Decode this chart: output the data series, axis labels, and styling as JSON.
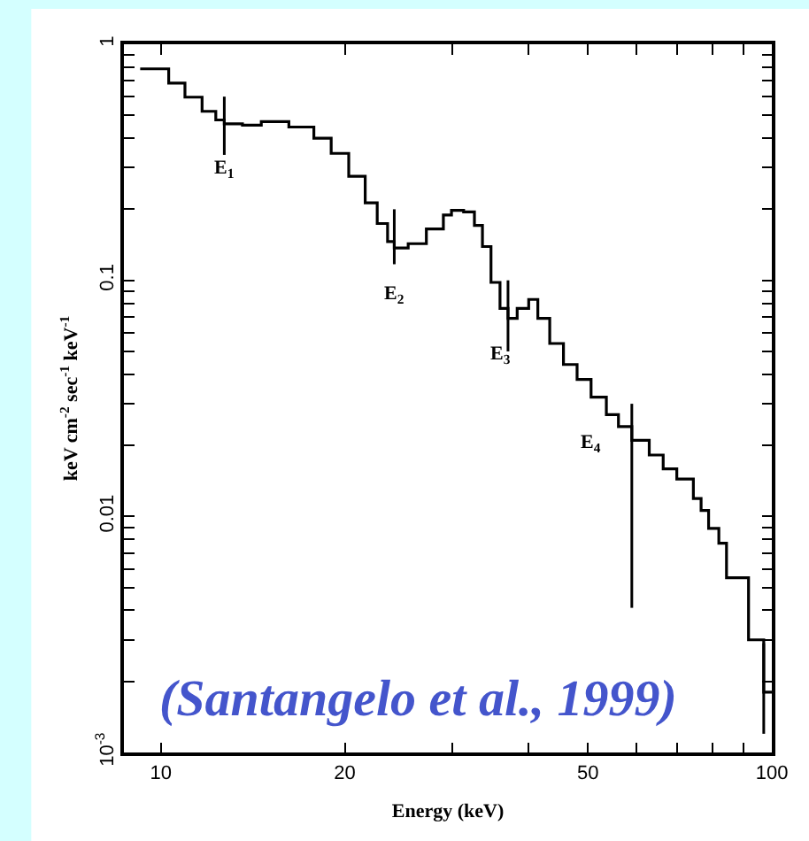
{
  "chart_data": {
    "type": "step",
    "xlabel": "Energy (keV)",
    "ylabel": "keV cm$^{-2}$ sec$^{-1}$ keV$^{-1}$",
    "log": "xy",
    "xlim": [
      8.7,
      100
    ],
    "ylim": [
      0.001,
      1
    ],
    "xticks": [
      10,
      20,
      {
        "value": 30,
        "label": null
      },
      {
        "value": 40,
        "label": null
      },
      50,
      {
        "value": 60,
        "label": null
      },
      {
        "value": 70,
        "label": null
      },
      {
        "value": 80,
        "label": null
      },
      {
        "value": 90,
        "label": null
      },
      100
    ],
    "yticks": [
      {
        "value": 0.001,
        "label": "10$^{-3}$"
      },
      {
        "value": 0.002,
        "label": null
      },
      {
        "value": 0.003,
        "label": null
      },
      {
        "value": 0.004,
        "label": null
      },
      {
        "value": 0.005,
        "label": null
      },
      {
        "value": 0.006,
        "label": null
      },
      {
        "value": 0.007,
        "label": null
      },
      {
        "value": 0.008,
        "label": null
      },
      {
        "value": 0.009,
        "label": null
      },
      0.01,
      {
        "value": 0.02,
        "label": null
      },
      {
        "value": 0.03,
        "label": null
      },
      {
        "value": 0.04,
        "label": null
      },
      {
        "value": 0.05,
        "label": null
      },
      {
        "value": 0.06,
        "label": null
      },
      {
        "value": 0.07,
        "label": null
      },
      {
        "value": 0.08,
        "label": null
      },
      {
        "value": 0.09,
        "label": null
      },
      0.1,
      {
        "value": 0.2,
        "label": null
      },
      {
        "value": 0.3,
        "label": null
      },
      {
        "value": 0.4,
        "label": null
      },
      {
        "value": 0.5,
        "label": null
      },
      {
        "value": 0.6,
        "label": null
      },
      {
        "value": 0.7,
        "label": null
      },
      {
        "value": 0.8,
        "label": null
      },
      {
        "value": 0.9,
        "label": null
      },
      1
    ],
    "series": [
      {
        "color": "#000000",
        "x": [
          9.25,
          10.3,
          10.95,
          11.68,
          12.3,
          12.7,
          13.6,
          14.6,
          16.2,
          17.8,
          19.0,
          20.3,
          21.6,
          22.6,
          23.5,
          24.1,
          25.4,
          27.2,
          29.0,
          29.9,
          31.3,
          32.6,
          33.6,
          34.7,
          35.9,
          37.0,
          38.3,
          40.0,
          41.4,
          43.3,
          45.6,
          48.0,
          50.6,
          53.6,
          56.1,
          59.0,
          63.0,
          66.4,
          69.9,
          74.4,
          76.6,
          78.8,
          81.9,
          84.3,
          90.5,
          91.6,
          97.0,
          100
        ],
        "values": [
          0.787,
          0.685,
          0.597,
          0.52,
          0.478,
          0.46,
          0.454,
          0.47,
          0.446,
          0.4,
          0.345,
          0.276,
          0.213,
          0.174,
          0.146,
          0.137,
          0.143,
          0.165,
          0.189,
          0.198,
          0.195,
          0.171,
          0.139,
          0.098,
          0.076,
          0.069,
          0.076,
          0.083,
          0.069,
          0.054,
          0.044,
          0.038,
          0.032,
          0.027,
          0.024,
          0.021,
          0.0182,
          0.0159,
          0.0144,
          0.0119,
          0.0106,
          0.0089,
          0.0077,
          0.0055,
          0.0055,
          0.003,
          0.0018,
          0.0018
        ],
        "errors": [
          null,
          null,
          null,
          null,
          null,
          [
            0.34,
            0.6
          ],
          null,
          null,
          null,
          null,
          null,
          null,
          null,
          null,
          null,
          [
            0.117,
            0.2
          ],
          null,
          null,
          null,
          null,
          null,
          null,
          null,
          null,
          null,
          [
            0.05,
            0.1
          ],
          null,
          null,
          null,
          null,
          null,
          null,
          null,
          null,
          null,
          [
            0.0041,
            0.03
          ],
          null,
          null,
          null,
          null,
          null,
          null,
          null,
          null,
          null,
          null,
          [
            0.0012,
            0.0029
          ],
          null
        ]
      }
    ],
    "annotations": [
      {
        "text": "E$_{1}$",
        "x": 12.7,
        "y": 0.46
      },
      {
        "text": "E$_{2}$",
        "x": 24.1,
        "y": 0.137
      },
      {
        "text": "E$_{3}$",
        "x": 35.9,
        "y": 0.076
      },
      {
        "text": "E$_{4}$",
        "x": 50.6,
        "y": 0.032
      },
      "(Santangelo et al., 1999)"
    ]
  }
}
